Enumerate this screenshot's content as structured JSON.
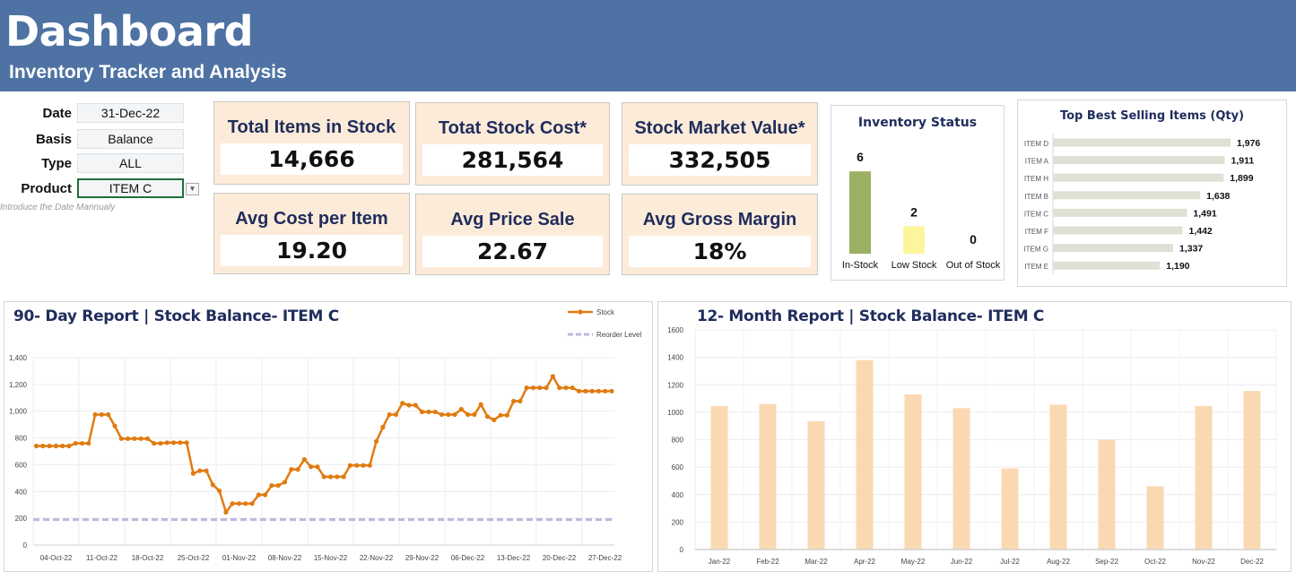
{
  "header": {
    "title": "Dashboard",
    "subtitle": "Inventory Tracker and Analysis"
  },
  "filters": {
    "date": {
      "label": "Date",
      "value": "31-Dec-22"
    },
    "basis": {
      "label": "Basis",
      "value": "Balance"
    },
    "type": {
      "label": "Type",
      "value": "ALL"
    },
    "product": {
      "label": "Product",
      "value": "ITEM C"
    },
    "note": "Introduce the Date Mannualy"
  },
  "kpis": [
    {
      "title": "Total Items in Stock",
      "value": "14,666"
    },
    {
      "title": "Totat Stock Cost*",
      "value": "281,564"
    },
    {
      "title": "Stock Market Value*",
      "value": "332,505"
    },
    {
      "title": "Avg Cost per Item",
      "value": "19.20"
    },
    {
      "title": "Avg Price Sale",
      "value": "22.67"
    },
    {
      "title": "Avg Gross Margin",
      "value": "18%"
    }
  ],
  "colors": {
    "header": "#4e72a3",
    "navy": "#1f2d5c",
    "card": "#fdebd9",
    "stock_line": "#e07b10",
    "reorder": "#c3b4dc",
    "month_bar": "#fad9b2",
    "in_stock": "#9bb064",
    "low_stock": "#fbf59b",
    "top_bar": "#dde2d5"
  },
  "chart_data": [
    {
      "type": "bar",
      "title": "Inventory Status",
      "categories": [
        "In-Stock",
        "Low Stock",
        "Out of Stock"
      ],
      "values": [
        6,
        2,
        0
      ],
      "labels": [
        "6",
        "2",
        "0"
      ]
    },
    {
      "type": "bar",
      "orientation": "horizontal",
      "title": "Top Best Selling Items (Qty)",
      "categories": [
        "ITEM D",
        "ITEM A",
        "ITEM H",
        "ITEM B",
        "ITEM C",
        "ITEM F",
        "ITEM G",
        "ITEM E"
      ],
      "values": [
        1976,
        1911,
        1899,
        1638,
        1491,
        1442,
        1337,
        1190
      ],
      "labels": [
        "1,976",
        "1,911",
        "1,899",
        "1,638",
        "1,491",
        "1,442",
        "1,337",
        "1,190"
      ]
    },
    {
      "type": "line",
      "title": "90- Day Report | Stock Balance- ITEM C",
      "legend": "top-right",
      "ylim": [
        0,
        1400
      ],
      "yticks": [
        "0",
        "200",
        "400",
        "600",
        "800",
        "1,000",
        "1,200",
        "1,400"
      ],
      "xticks": [
        "04-Oct-22",
        "11-Oct-22",
        "18-Oct-22",
        "25-Oct-22",
        "01-Nov-22",
        "08-Nov-22",
        "15-Nov-22",
        "22-Nov-22",
        "29-Nov-22",
        "06-Dec-22",
        "13-Dec-22",
        "20-Dec-22",
        "27-Dec-22"
      ],
      "x": [
        "04-Oct-22",
        "05-Oct-22",
        "06-Oct-22",
        "07-Oct-22",
        "08-Oct-22",
        "09-Oct-22",
        "10-Oct-22",
        "11-Oct-22",
        "12-Oct-22",
        "13-Oct-22",
        "14-Oct-22",
        "15-Oct-22",
        "16-Oct-22",
        "17-Oct-22",
        "18-Oct-22",
        "19-Oct-22",
        "20-Oct-22",
        "21-Oct-22",
        "22-Oct-22",
        "23-Oct-22",
        "24-Oct-22",
        "25-Oct-22",
        "26-Oct-22",
        "27-Oct-22",
        "28-Oct-22",
        "29-Oct-22",
        "30-Oct-22",
        "31-Oct-22",
        "01-Nov-22",
        "02-Nov-22",
        "03-Nov-22",
        "04-Nov-22",
        "05-Nov-22",
        "06-Nov-22",
        "07-Nov-22",
        "08-Nov-22",
        "09-Nov-22",
        "10-Nov-22",
        "11-Nov-22",
        "12-Nov-22",
        "13-Nov-22",
        "14-Nov-22",
        "15-Nov-22",
        "16-Nov-22",
        "17-Nov-22",
        "18-Nov-22",
        "19-Nov-22",
        "20-Nov-22",
        "21-Nov-22",
        "22-Nov-22",
        "23-Nov-22",
        "24-Nov-22",
        "25-Nov-22",
        "26-Nov-22",
        "27-Nov-22",
        "28-Nov-22",
        "29-Nov-22",
        "30-Nov-22",
        "01-Dec-22",
        "02-Dec-22",
        "03-Dec-22",
        "04-Dec-22",
        "05-Dec-22",
        "06-Dec-22",
        "07-Dec-22",
        "08-Dec-22",
        "09-Dec-22",
        "10-Dec-22",
        "11-Dec-22",
        "12-Dec-22",
        "13-Dec-22",
        "14-Dec-22",
        "15-Dec-22",
        "16-Dec-22",
        "17-Dec-22",
        "18-Dec-22",
        "19-Dec-22",
        "20-Dec-22",
        "21-Dec-22",
        "22-Dec-22",
        "23-Dec-22",
        "24-Dec-22",
        "25-Dec-22",
        "26-Dec-22",
        "27-Dec-22",
        "28-Dec-22",
        "29-Dec-22",
        "30-Dec-22",
        "31-Dec-22"
      ],
      "series": [
        {
          "name": "Stock",
          "values": [
            740,
            740,
            740,
            740,
            740,
            740,
            760,
            760,
            760,
            975,
            975,
            975,
            890,
            795,
            795,
            795,
            795,
            795,
            760,
            760,
            765,
            765,
            765,
            765,
            535,
            555,
            555,
            450,
            405,
            245,
            310,
            310,
            310,
            310,
            375,
            375,
            445,
            445,
            470,
            565,
            565,
            640,
            585,
            585,
            510,
            510,
            510,
            510,
            595,
            595,
            595,
            595,
            775,
            880,
            975,
            975,
            1060,
            1045,
            1045,
            995,
            995,
            995,
            975,
            975,
            975,
            1015,
            975,
            975,
            1050,
            960,
            935,
            970,
            970,
            1075,
            1075,
            1175,
            1175,
            1175,
            1175,
            1260,
            1175,
            1175,
            1175,
            1150,
            1150,
            1150,
            1150,
            1150,
            1150
          ]
        },
        {
          "name": "Reorder Level",
          "value": 190
        }
      ]
    },
    {
      "type": "bar",
      "title": "12- Month Report | Stock Balance- ITEM C",
      "ylim": [
        0,
        1600
      ],
      "yticks": [
        "0",
        "200",
        "400",
        "600",
        "800",
        "1000",
        "1200",
        "1400",
        "1600"
      ],
      "categories": [
        "Jan-22",
        "Feb-22",
        "Mar-22",
        "Apr-22",
        "May-22",
        "Jun-22",
        "Jul-22",
        "Aug-22",
        "Sep-22",
        "Oct-22",
        "Nov-22",
        "Dec-22"
      ],
      "values": [
        1045,
        1060,
        935,
        1380,
        1130,
        1030,
        590,
        1055,
        800,
        460,
        1045,
        1155
      ]
    }
  ]
}
